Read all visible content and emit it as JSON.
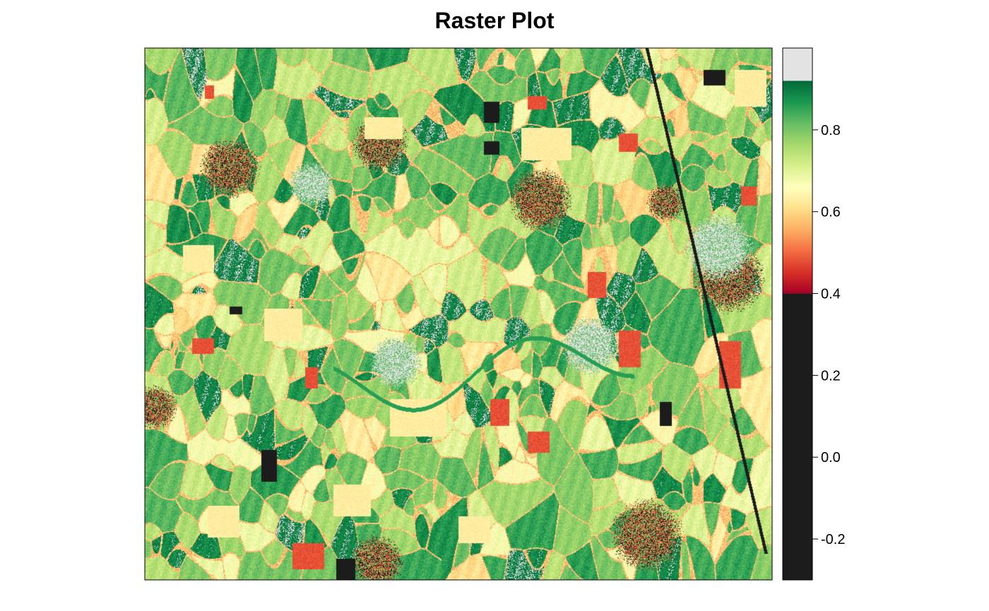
{
  "chart_data": {
    "type": "heatmap",
    "title": "Raster Plot",
    "xlabel": "",
    "ylabel": "",
    "legend_position": "right",
    "grid": false,
    "colorbar": {
      "ticks": [
        -0.2,
        0.0,
        0.2,
        0.4,
        0.6,
        0.8
      ],
      "tick_labels": [
        "-0.2",
        "0.0",
        "0.2",
        "0.4",
        "0.6",
        "0.8"
      ],
      "range": [
        -0.3,
        1.0
      ],
      "bands": [
        {
          "from": -0.3,
          "to": 0.4,
          "color": "#1c1c1c"
        },
        {
          "from": 0.4,
          "to": 0.92,
          "gradient": [
            "#a50026",
            "#d73027",
            "#f46d43",
            "#fdae61",
            "#fee08b",
            "#ffffbf",
            "#d9ef8b",
            "#a6d96a",
            "#66bd63",
            "#1a9850",
            "#006837"
          ]
        },
        {
          "from": 0.92,
          "to": 1.0,
          "color": "#e3e3e3"
        }
      ]
    },
    "raster": {
      "background_value": 0.8,
      "features": [
        {
          "kind": "settlement",
          "cx": 0.135,
          "cy": 0.225,
          "r": 0.04
        },
        {
          "kind": "settlement",
          "cx": 0.375,
          "cy": 0.18,
          "r": 0.038
        },
        {
          "kind": "settlement",
          "cx": 0.63,
          "cy": 0.285,
          "r": 0.042
        },
        {
          "kind": "settlement",
          "cx": 0.93,
          "cy": 0.43,
          "r": 0.048
        },
        {
          "kind": "settlement",
          "cx": 0.8,
          "cy": 0.915,
          "r": 0.048
        },
        {
          "kind": "settlement",
          "cx": 0.015,
          "cy": 0.675,
          "r": 0.03
        },
        {
          "kind": "settlement",
          "cx": 0.37,
          "cy": 0.965,
          "r": 0.035
        },
        {
          "kind": "settlement",
          "cx": 0.83,
          "cy": 0.29,
          "r": 0.025
        },
        {
          "kind": "water",
          "cx": 0.71,
          "cy": 0.56,
          "r": 0.04
        },
        {
          "kind": "water",
          "cx": 0.915,
          "cy": 0.375,
          "r": 0.045
        },
        {
          "kind": "water",
          "cx": 0.265,
          "cy": 0.255,
          "r": 0.03
        },
        {
          "kind": "water",
          "cx": 0.4,
          "cy": 0.59,
          "r": 0.035
        },
        {
          "kind": "dark-field",
          "x": 0.54,
          "y": 0.1,
          "w": 0.025,
          "h": 0.04
        },
        {
          "kind": "dark-field",
          "x": 0.89,
          "y": 0.04,
          "w": 0.035,
          "h": 0.03
        },
        {
          "kind": "dark-field",
          "x": 0.54,
          "y": 0.175,
          "w": 0.025,
          "h": 0.025
        },
        {
          "kind": "dark-field",
          "x": 0.185,
          "y": 0.755,
          "w": 0.025,
          "h": 0.06
        },
        {
          "kind": "dark-field",
          "x": 0.82,
          "y": 0.665,
          "w": 0.02,
          "h": 0.045
        },
        {
          "kind": "dark-field",
          "x": 0.135,
          "y": 0.485,
          "w": 0.02,
          "h": 0.015
        },
        {
          "kind": "dark-field",
          "x": 0.305,
          "y": 0.96,
          "w": 0.03,
          "h": 0.04
        },
        {
          "kind": "red-field",
          "x": 0.095,
          "y": 0.07,
          "w": 0.015,
          "h": 0.025
        },
        {
          "kind": "red-field",
          "x": 0.705,
          "y": 0.42,
          "w": 0.03,
          "h": 0.05
        },
        {
          "kind": "red-field",
          "x": 0.755,
          "y": 0.53,
          "w": 0.035,
          "h": 0.07
        },
        {
          "kind": "red-field",
          "x": 0.915,
          "y": 0.55,
          "w": 0.035,
          "h": 0.09
        },
        {
          "kind": "red-field",
          "x": 0.255,
          "y": 0.6,
          "w": 0.02,
          "h": 0.04
        },
        {
          "kind": "red-field",
          "x": 0.55,
          "y": 0.66,
          "w": 0.03,
          "h": 0.05
        },
        {
          "kind": "red-field",
          "x": 0.61,
          "y": 0.72,
          "w": 0.035,
          "h": 0.04
        },
        {
          "kind": "red-field",
          "x": 0.075,
          "y": 0.545,
          "w": 0.035,
          "h": 0.03
        },
        {
          "kind": "red-field",
          "x": 0.95,
          "y": 0.26,
          "w": 0.025,
          "h": 0.035
        },
        {
          "kind": "red-field",
          "x": 0.61,
          "y": 0.09,
          "w": 0.03,
          "h": 0.025
        },
        {
          "kind": "red-field",
          "x": 0.755,
          "y": 0.16,
          "w": 0.03,
          "h": 0.035
        },
        {
          "kind": "red-field",
          "x": 0.235,
          "y": 0.93,
          "w": 0.05,
          "h": 0.05
        },
        {
          "kind": "orange-field",
          "x": 0.39,
          "y": 0.66,
          "w": 0.09,
          "h": 0.07
        },
        {
          "kind": "orange-field",
          "x": 0.6,
          "y": 0.15,
          "w": 0.08,
          "h": 0.06
        },
        {
          "kind": "orange-field",
          "x": 0.35,
          "y": 0.13,
          "w": 0.06,
          "h": 0.04
        },
        {
          "kind": "orange-field",
          "x": 0.19,
          "y": 0.49,
          "w": 0.06,
          "h": 0.06
        },
        {
          "kind": "orange-field",
          "x": 0.94,
          "y": 0.04,
          "w": 0.05,
          "h": 0.07
        },
        {
          "kind": "orange-field",
          "x": 0.3,
          "y": 0.82,
          "w": 0.06,
          "h": 0.06
        },
        {
          "kind": "orange-field",
          "x": 0.5,
          "y": 0.88,
          "w": 0.05,
          "h": 0.05
        },
        {
          "kind": "orange-field",
          "x": 0.1,
          "y": 0.86,
          "w": 0.05,
          "h": 0.06
        },
        {
          "kind": "orange-field",
          "x": 0.06,
          "y": 0.37,
          "w": 0.05,
          "h": 0.05
        }
      ]
    }
  }
}
